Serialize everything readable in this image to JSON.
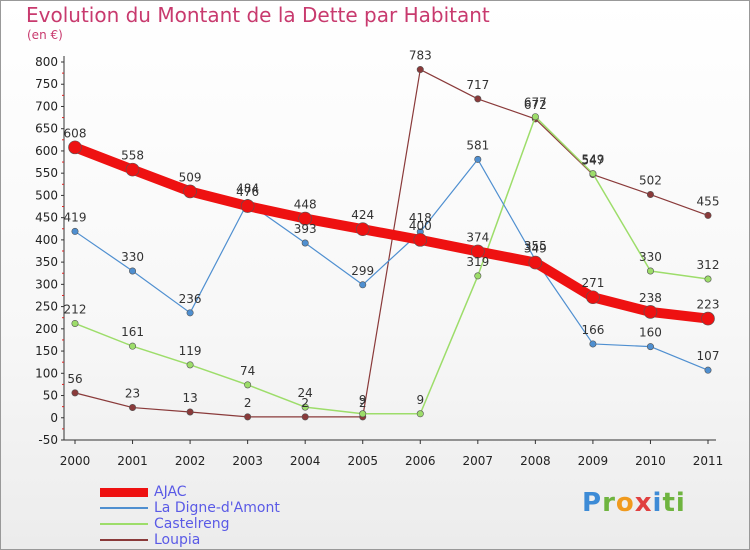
{
  "header": {
    "title": "Evolution du Montant de la Dette par Habitant",
    "unit": "(en €)"
  },
  "logo": {
    "text": "Proxiti"
  },
  "chart_data": {
    "type": "line",
    "title": "Evolution du Montant de la Dette par Habitant",
    "subtitle": "(en €)",
    "xlabel": "",
    "ylabel": "",
    "x": [
      "2000",
      "2001",
      "2002",
      "2003",
      "2004",
      "2005",
      "2006",
      "2007",
      "2008",
      "2009",
      "2010",
      "2011"
    ],
    "ylim": [
      -50,
      800
    ],
    "yticks": [
      -50,
      0,
      50,
      100,
      150,
      200,
      250,
      300,
      350,
      400,
      450,
      500,
      550,
      600,
      650,
      700,
      750,
      800
    ],
    "grid": false,
    "legend": "bottom-left",
    "series": [
      {
        "name": "AJAC",
        "color": "#ee1111",
        "width": 10,
        "values": [
          608,
          558,
          509,
          476,
          448,
          424,
          400,
          374,
          349,
          271,
          238,
          223
        ]
      },
      {
        "name": "La Digne-d'Amont",
        "color": "#4f8fd0",
        "width": 1.2,
        "values": [
          419,
          330,
          236,
          484,
          393,
          299,
          418,
          581,
          355,
          166,
          160,
          107
        ]
      },
      {
        "name": "Castelreng",
        "color": "#9ddd6a",
        "width": 1.5,
        "values": [
          212,
          161,
          119,
          74,
          24,
          9,
          9,
          319,
          677,
          549,
          330,
          312
        ]
      },
      {
        "name": "Loupia",
        "color": "#8a3a3a",
        "width": 1.2,
        "values": [
          56,
          23,
          13,
          2,
          2,
          2,
          783,
          717,
          672,
          547,
          502,
          455
        ]
      }
    ]
  }
}
